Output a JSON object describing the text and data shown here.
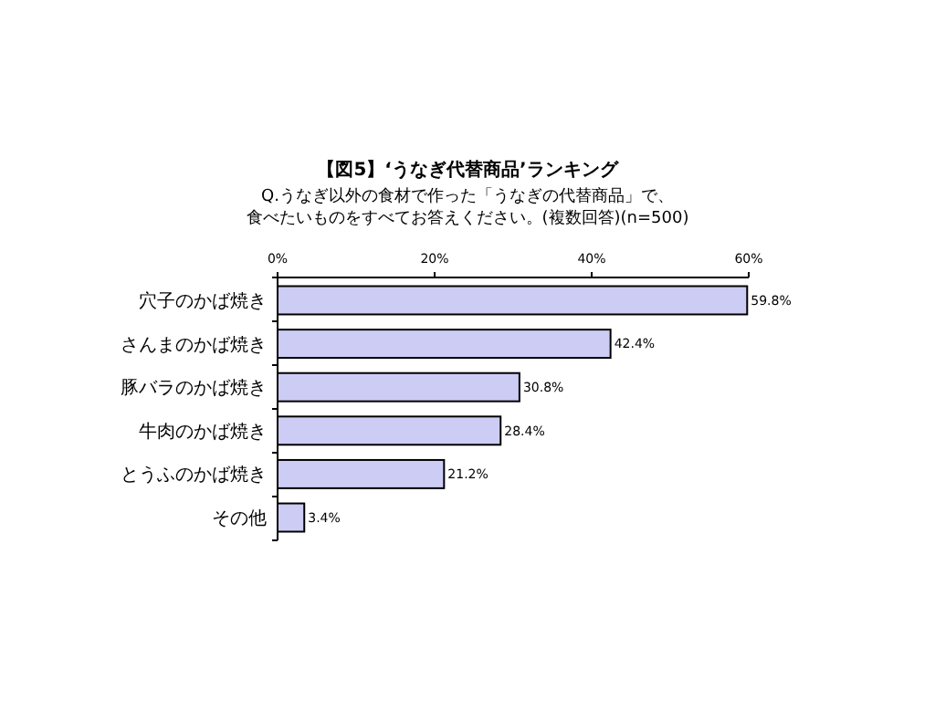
{
  "chart_data": {
    "type": "bar",
    "orientation": "horizontal",
    "title": "【図5】‘うなぎ代替商品’ランキング",
    "subtitle": "Q.うなぎ以外の食材で作った「うなぎの代替商品」で、食べたいものをすべてお答えください。(複数回答)(n=500)",
    "categories": [
      "穴子のかば焼き",
      "さんまのかば焼き",
      "豚バラのかば焼き",
      "牛肉のかば焼き",
      "とうふのかば焼き",
      "その他"
    ],
    "values": [
      59.8,
      42.4,
      30.8,
      28.4,
      21.2,
      3.4
    ],
    "value_labels": [
      "59.8%",
      "42.4%",
      "30.8%",
      "28.4%",
      "21.2%",
      "3.4%"
    ],
    "color": "#ccccf5",
    "xlim": [
      0,
      60
    ],
    "xticks": [
      {
        "value": 0,
        "label": "0%"
      },
      {
        "value": 20,
        "label": "20%"
      },
      {
        "value": 40,
        "label": "40%"
      },
      {
        "value": 60,
        "label": "60%"
      }
    ],
    "grid": false
  }
}
